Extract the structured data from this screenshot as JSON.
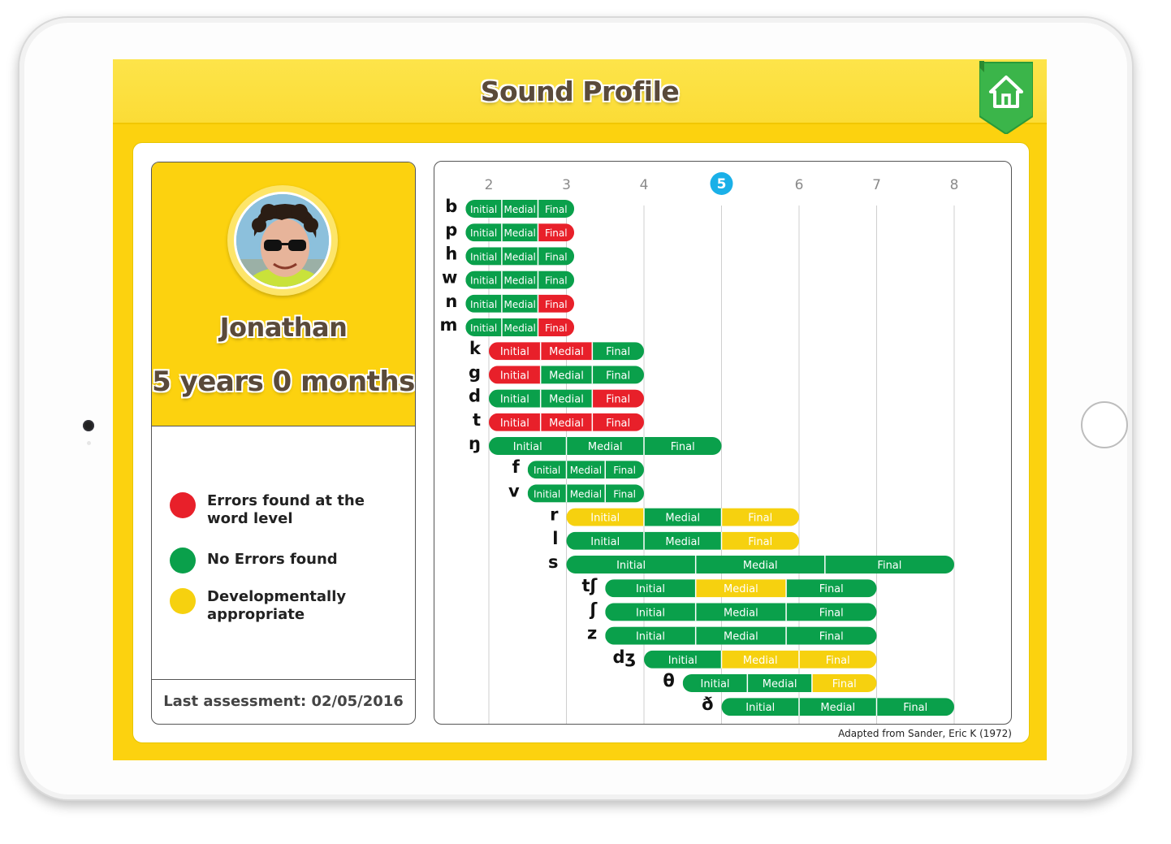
{
  "header": {
    "title": "Sound Profile",
    "home_icon": "home-icon"
  },
  "profile": {
    "name": "Jonathan",
    "age": "5 years 0 months",
    "last_assessment": "Last assessment: 02/05/2016",
    "legend": [
      {
        "label": "Errors found at the word level",
        "color": "#e8202a"
      },
      {
        "label": "No Errors found",
        "color": "#0aa04b"
      },
      {
        "label": "Developmentally appropriate",
        "color": "#f6d10f"
      }
    ]
  },
  "credit": "Adapted from Sander, Eric K (1972)",
  "colors": {
    "error": "#e8202a",
    "ok": "#0aa04b",
    "dev": "#f6d10f",
    "current_age": "#1ab0e8",
    "axis_text": "#8a8a8a"
  },
  "chart_data": {
    "type": "table",
    "x_axis_ages": [
      2,
      3,
      4,
      5,
      6,
      7,
      8
    ],
    "current_age": 5,
    "position_labels": [
      "Initial",
      "Medial",
      "Final"
    ],
    "status_legend": {
      "R": "error",
      "G": "ok",
      "Y": "dev"
    },
    "sounds": [
      {
        "sound": "b",
        "start": 1.7,
        "end": 3.1,
        "status": [
          "G",
          "G",
          "G"
        ]
      },
      {
        "sound": "p",
        "start": 1.7,
        "end": 3.1,
        "status": [
          "G",
          "G",
          "R"
        ]
      },
      {
        "sound": "h",
        "start": 1.7,
        "end": 3.1,
        "status": [
          "G",
          "G",
          "G"
        ]
      },
      {
        "sound": "w",
        "start": 1.7,
        "end": 3.1,
        "status": [
          "G",
          "G",
          "G"
        ]
      },
      {
        "sound": "n",
        "start": 1.7,
        "end": 3.1,
        "status": [
          "G",
          "G",
          "R"
        ]
      },
      {
        "sound": "m",
        "start": 1.7,
        "end": 3.1,
        "status": [
          "G",
          "G",
          "R"
        ]
      },
      {
        "sound": "k",
        "start": 2.0,
        "end": 4.0,
        "status": [
          "R",
          "R",
          "G"
        ]
      },
      {
        "sound": "g",
        "start": 2.0,
        "end": 4.0,
        "status": [
          "R",
          "G",
          "G"
        ]
      },
      {
        "sound": "d",
        "start": 2.0,
        "end": 4.0,
        "status": [
          "G",
          "G",
          "R"
        ]
      },
      {
        "sound": "t",
        "start": 2.0,
        "end": 4.0,
        "status": [
          "R",
          "R",
          "R"
        ]
      },
      {
        "sound": "ŋ",
        "start": 2.0,
        "end": 5.0,
        "status": [
          "G",
          "G",
          "G"
        ]
      },
      {
        "sound": "f",
        "start": 2.5,
        "end": 4.0,
        "status": [
          "G",
          "G",
          "G"
        ]
      },
      {
        "sound": "v",
        "start": 2.5,
        "end": 4.0,
        "status": [
          "G",
          "G",
          "G"
        ]
      },
      {
        "sound": "r",
        "start": 3.0,
        "end": 6.0,
        "status": [
          "Y",
          "G",
          "Y"
        ]
      },
      {
        "sound": "l",
        "start": 3.0,
        "end": 6.0,
        "status": [
          "G",
          "G",
          "Y"
        ]
      },
      {
        "sound": "s",
        "start": 3.0,
        "end": 8.0,
        "status": [
          "G",
          "G",
          "G"
        ]
      },
      {
        "sound": "tʃ",
        "start": 3.5,
        "end": 7.0,
        "status": [
          "G",
          "Y",
          "G"
        ]
      },
      {
        "sound": "ʃ",
        "start": 3.5,
        "end": 7.0,
        "status": [
          "G",
          "G",
          "G"
        ]
      },
      {
        "sound": "z",
        "start": 3.5,
        "end": 7.0,
        "status": [
          "G",
          "G",
          "G"
        ]
      },
      {
        "sound": "dʒ",
        "start": 4.0,
        "end": 7.0,
        "status": [
          "G",
          "Y",
          "Y"
        ]
      },
      {
        "sound": "θ",
        "start": 4.5,
        "end": 7.0,
        "status": [
          "G",
          "G",
          "Y"
        ]
      },
      {
        "sound": "ð",
        "start": 5.0,
        "end": 8.0,
        "status": [
          "G",
          "G",
          "G"
        ]
      }
    ]
  }
}
